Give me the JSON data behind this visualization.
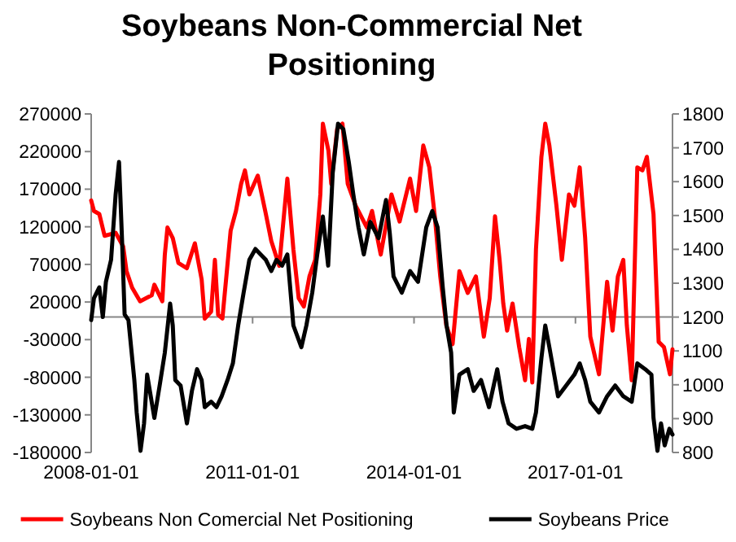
{
  "chart_data": {
    "type": "line",
    "title": "Soybeans Non-Commercial Net Positioning",
    "xlim": [
      "2008-01-01",
      "2018-10-22"
    ],
    "xticks": [
      "2008-01-01",
      "2011-01-01",
      "2014-01-01",
      "2017-01-01"
    ],
    "ylim": [
      -180000,
      270000
    ],
    "yticks": [
      -180000,
      -130000,
      -80000,
      -30000,
      20000,
      70000,
      120000,
      170000,
      220000,
      270000
    ],
    "y2lim": [
      800,
      1800
    ],
    "y2ticks": [
      800,
      900,
      1000,
      1100,
      1200,
      1300,
      1400,
      1500,
      1600,
      1700,
      1800
    ],
    "legend": "bottom",
    "series": [
      {
        "name": "Soybeans Non Comercial Net Positioning",
        "color": "#ff0000",
        "x": [
          "2008-01-01",
          "2008-01-20",
          "2008-02-25",
          "2008-04-01",
          "2008-06-15",
          "2008-08-05",
          "2008-08-28",
          "2008-10-05",
          "2008-11-28",
          "2009-02-15",
          "2009-03-05",
          "2009-04-28",
          "2009-05-15",
          "2009-06-02",
          "2009-07-08",
          "2009-08-15",
          "2009-10-12",
          "2009-10-30",
          "2009-12-05",
          "2010-01-20",
          "2010-02-10",
          "2010-03-25",
          "2010-04-20",
          "2010-05-12",
          "2010-06-10",
          "2010-08-05",
          "2010-09-10",
          "2010-10-15",
          "2010-11-10",
          "2010-12-10",
          "2011-02-05",
          "2011-04-01",
          "2011-05-08",
          "2011-07-01",
          "2011-08-25",
          "2011-10-05",
          "2011-11-10",
          "2011-12-15",
          "2012-01-22",
          "2012-03-01",
          "2012-04-05",
          "2012-04-22",
          "2012-05-30",
          "2012-06-18",
          "2012-07-28",
          "2012-09-02",
          "2012-10-08",
          "2012-12-01",
          "2013-02-15",
          "2013-03-22",
          "2013-05-20",
          "2013-08-01",
          "2013-09-25",
          "2013-12-05",
          "2014-01-15",
          "2014-03-05",
          "2014-04-15",
          "2014-05-22",
          "2014-06-28",
          "2014-08-08",
          "2014-09-20",
          "2014-11-05",
          "2015-01-01",
          "2015-02-25",
          "2015-04-20",
          "2015-05-30",
          "2015-07-05",
          "2015-08-05",
          "2015-08-30",
          "2015-09-25",
          "2015-11-01",
          "2015-12-16",
          "2016-01-25",
          "2016-02-20",
          "2016-03-14",
          "2016-04-08",
          "2016-05-15",
          "2016-06-10",
          "2016-07-08",
          "2016-08-25",
          "2016-10-01",
          "2016-11-18",
          "2016-12-25",
          "2017-01-30",
          "2017-03-08",
          "2017-04-12",
          "2017-06-10",
          "2017-08-04",
          "2017-09-10",
          "2017-10-16",
          "2017-11-22",
          "2017-12-16",
          "2018-01-18",
          "2018-02-25",
          "2018-04-01",
          "2018-05-01",
          "2018-06-15",
          "2018-07-20",
          "2018-08-25",
          "2018-10-05",
          "2018-10-22"
        ],
        "values": [
          155000,
          141000,
          137000,
          108000,
          112000,
          94000,
          61000,
          39000,
          21000,
          29000,
          43000,
          21000,
          83000,
          119000,
          105000,
          72000,
          65000,
          76000,
          98000,
          50000,
          -2000,
          7000,
          76000,
          3000,
          -2000,
          115000,
          141000,
          177000,
          195000,
          163000,
          188000,
          137000,
          101000,
          68000,
          184000,
          90000,
          25000,
          14000,
          54000,
          76000,
          163000,
          257000,
          221000,
          177000,
          250000,
          257000,
          177000,
          148000,
          119000,
          141000,
          83000,
          163000,
          127000,
          184000,
          141000,
          228000,
          199000,
          134000,
          54000,
          -11000,
          -36000,
          61000,
          32000,
          54000,
          -26000,
          25000,
          134000,
          76000,
          18000,
          -18000,
          18000,
          -40000,
          -84000,
          -29000,
          -87000,
          90000,
          213000,
          257000,
          228000,
          148000,
          76000,
          163000,
          148000,
          199000,
          105000,
          -26000,
          -76000,
          47000,
          -18000,
          54000,
          76000,
          -11000,
          -84000,
          199000,
          195000,
          213000,
          137000,
          -33000,
          -40000,
          -76000,
          -43000
        ]
      },
      {
        "name": "Soybeans Price",
        "color": "#000000",
        "axis": "y2",
        "x": [
          "2008-01-01",
          "2008-01-20",
          "2008-02-25",
          "2008-03-20",
          "2008-04-10",
          "2008-05-15",
          "2008-06-15",
          "2008-07-08",
          "2008-07-28",
          "2008-08-15",
          "2008-09-10",
          "2008-10-20",
          "2008-11-05",
          "2008-12-01",
          "2008-12-25",
          "2009-01-15",
          "2009-03-05",
          "2009-04-10",
          "2009-05-15",
          "2009-06-20",
          "2009-07-08",
          "2009-07-25",
          "2009-08-30",
          "2009-10-12",
          "2009-11-15",
          "2009-12-20",
          "2010-01-20",
          "2010-02-10",
          "2010-03-25",
          "2010-05-01",
          "2010-06-05",
          "2010-07-15",
          "2010-08-20",
          "2010-09-25",
          "2010-11-01",
          "2010-12-10",
          "2011-01-20",
          "2011-02-25",
          "2011-04-01",
          "2011-05-08",
          "2011-06-12",
          "2011-07-20",
          "2011-08-25",
          "2011-10-05",
          "2011-11-28",
          "2012-01-01",
          "2012-02-10",
          "2012-03-15",
          "2012-04-22",
          "2012-05-28",
          "2012-06-28",
          "2012-08-03",
          "2012-09-08",
          "2012-10-15",
          "2012-11-15",
          "2012-12-20",
          "2013-01-25",
          "2013-03-10",
          "2013-05-05",
          "2013-06-25",
          "2013-07-20",
          "2013-08-15",
          "2013-10-10",
          "2013-12-05",
          "2014-01-28",
          "2014-03-25",
          "2014-05-05",
          "2014-06-10",
          "2014-07-15",
          "2014-08-10",
          "2014-09-10",
          "2014-09-28",
          "2014-11-05",
          "2015-01-01",
          "2015-02-10",
          "2015-04-01",
          "2015-05-25",
          "2015-07-20",
          "2015-08-25",
          "2015-10-05",
          "2015-11-28",
          "2016-01-25",
          "2016-03-14",
          "2016-04-08",
          "2016-05-15",
          "2016-06-10",
          "2016-07-08",
          "2016-09-05",
          "2016-10-30",
          "2016-12-25",
          "2017-01-30",
          "2017-03-08",
          "2017-04-12",
          "2017-06-10",
          "2017-08-04",
          "2017-09-28",
          "2017-11-22",
          "2018-01-18",
          "2018-02-25",
          "2018-04-20",
          "2018-06-01",
          "2018-06-15",
          "2018-07-12",
          "2018-08-05",
          "2018-08-30",
          "2018-10-01",
          "2018-10-22"
        ],
        "values": [
          1191,
          1256,
          1288,
          1200,
          1304,
          1369,
          1562,
          1658,
          1433,
          1208,
          1191,
          1014,
          918,
          805,
          886,
          1030,
          902,
          998,
          1095,
          1240,
          1175,
          1014,
          998,
          886,
          982,
          1046,
          1014,
          934,
          950,
          934,
          966,
          1014,
          1063,
          1175,
          1272,
          1369,
          1401,
          1385,
          1369,
          1336,
          1369,
          1352,
          1385,
          1175,
          1111,
          1175,
          1272,
          1385,
          1497,
          1352,
          1626,
          1771,
          1755,
          1658,
          1562,
          1465,
          1385,
          1481,
          1433,
          1546,
          1449,
          1320,
          1272,
          1336,
          1304,
          1465,
          1513,
          1465,
          1288,
          1175,
          1095,
          918,
          1030,
          1046,
          982,
          1014,
          934,
          1046,
          950,
          886,
          870,
          878,
          870,
          918,
          1079,
          1175,
          1111,
          966,
          998,
          1030,
          1063,
          1014,
          950,
          918,
          966,
          998,
          966,
          950,
          1063,
          1046,
          1030,
          902,
          805,
          886,
          821,
          870,
          853
        ]
      }
    ]
  }
}
